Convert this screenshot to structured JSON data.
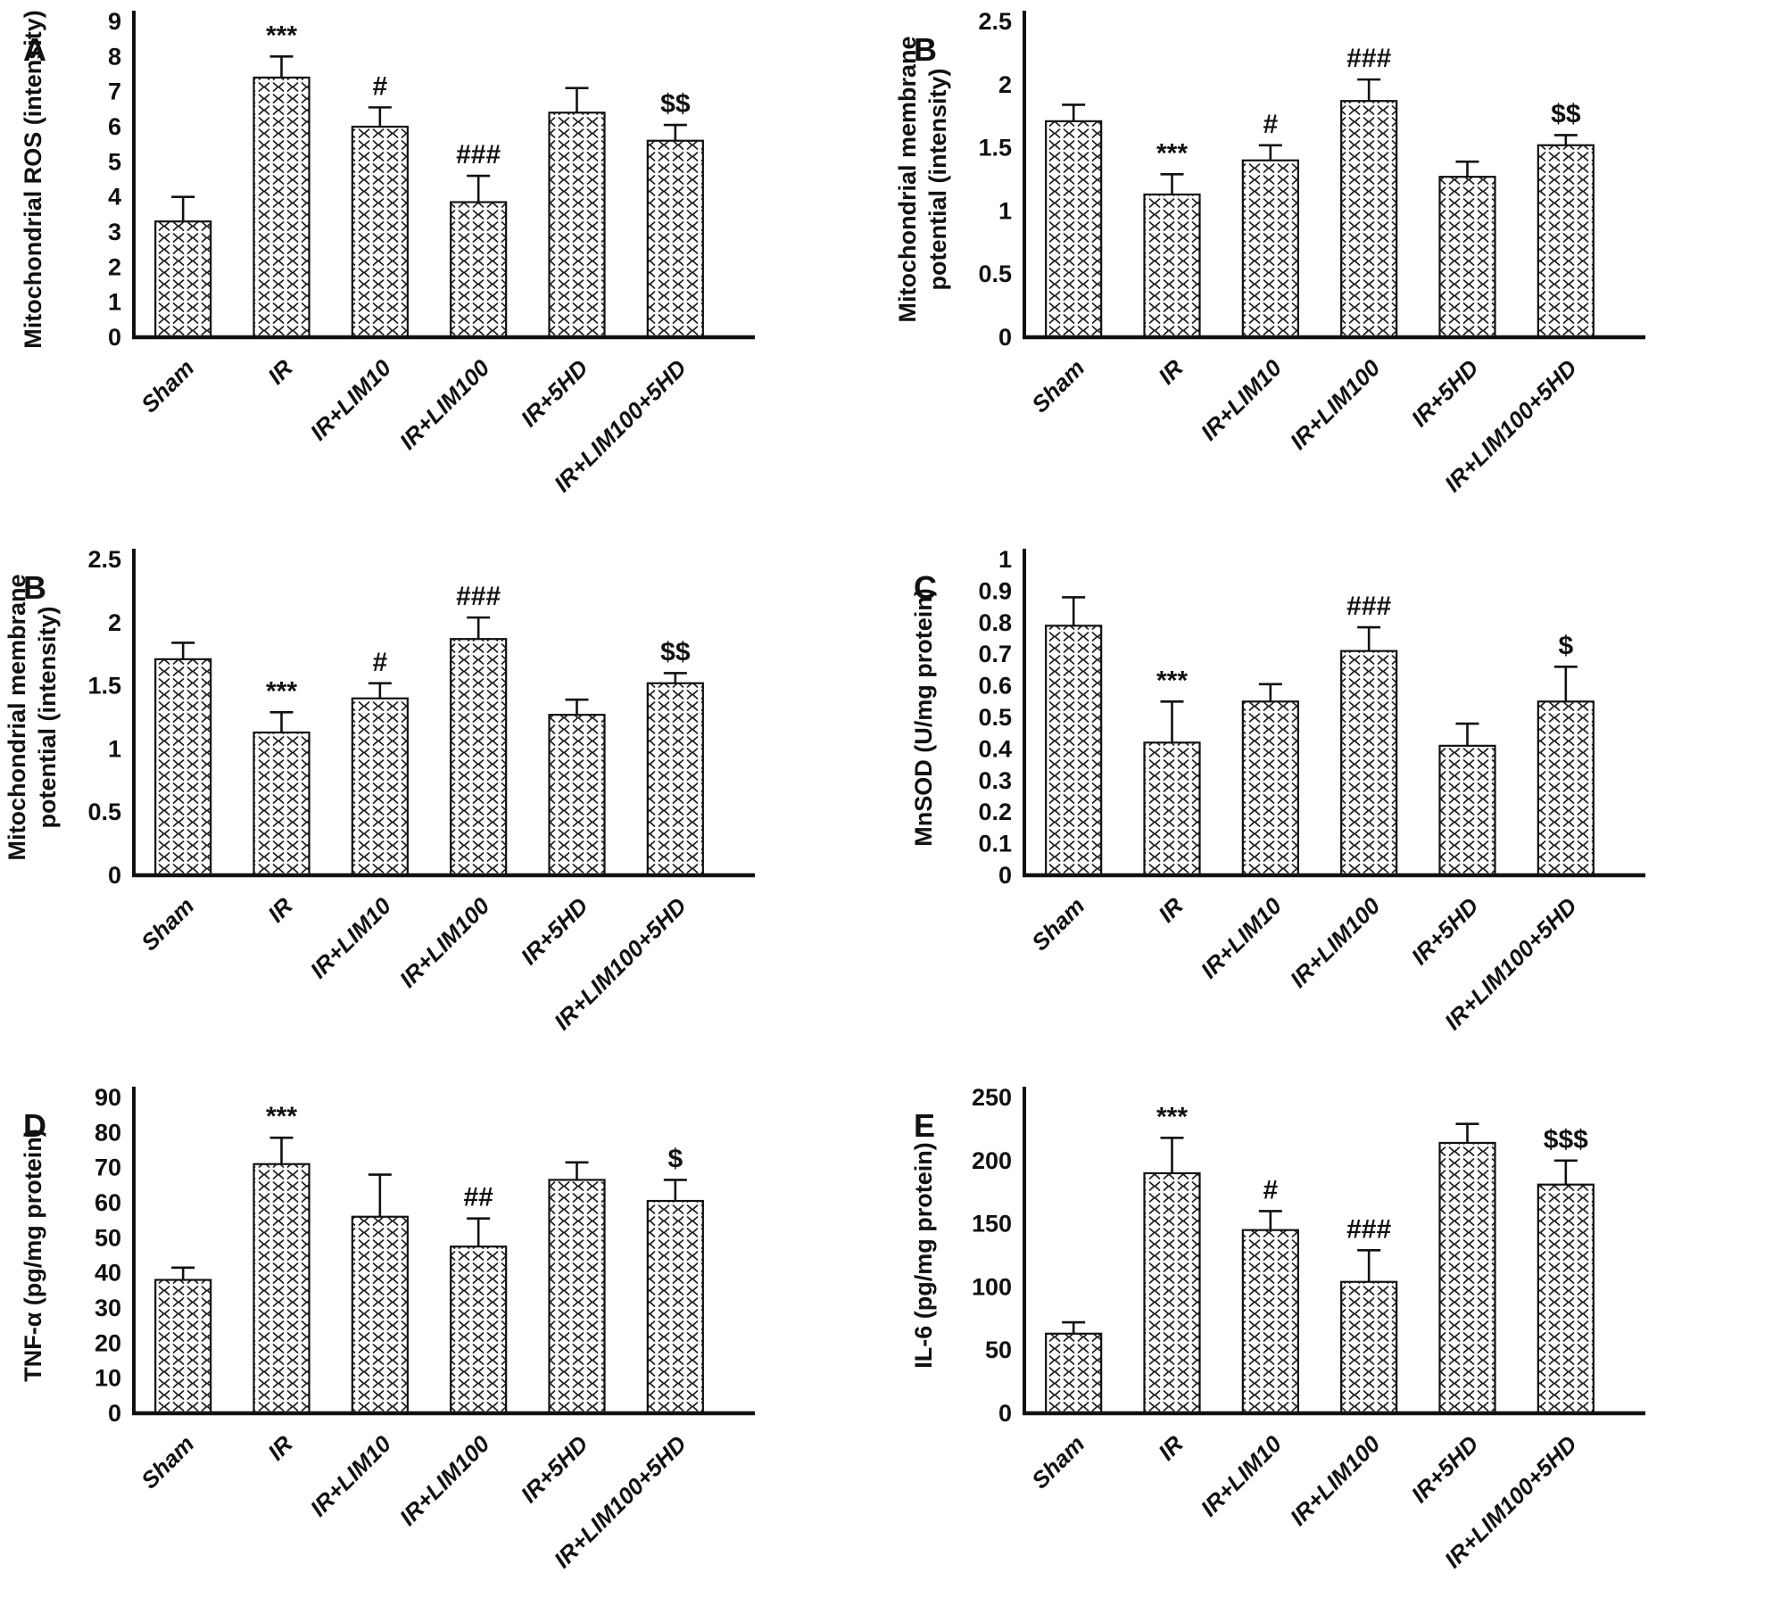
{
  "figure": {
    "background": "#ffffff",
    "ink_color": "#111111",
    "bar_fill": "#ffffff",
    "bar_pattern": "chevron-hatch",
    "panels_order": [
      "A",
      "B",
      "B",
      "C",
      "D",
      "E"
    ]
  },
  "chart_data": [
    {
      "type": "bar",
      "panel_letter": "A",
      "ylabel": "Mitochondrial ROS (intensity)",
      "ylabel_lines": [
        "Mitochondrial ROS (intensity)"
      ],
      "ylim": [
        0,
        9
      ],
      "ytick_labels": [
        "0",
        "1",
        "2",
        "3",
        "4",
        "5",
        "6",
        "7",
        "8",
        "9"
      ],
      "categories": [
        "Sham",
        "IR",
        "IR+LIM10",
        "IR+LIM100",
        "IR+5HD",
        "IR+LIM100+5HD"
      ],
      "values": [
        3.3,
        7.4,
        6.0,
        3.85,
        6.4,
        5.6
      ],
      "errors": [
        0.7,
        0.6,
        0.55,
        0.75,
        0.7,
        0.45
      ],
      "annotations": [
        "",
        "***",
        "#",
        "###",
        "",
        "$$"
      ],
      "legend": "none",
      "grid": false
    },
    {
      "type": "bar",
      "panel_letter": "B",
      "ylabel": "Mitochondrial membrane potential (intensity)",
      "ylabel_lines": [
        "Mitochondrial membrane",
        "potential (intensity)"
      ],
      "ylim": [
        0,
        2.5
      ],
      "ytick_labels": [
        "0",
        "0.5",
        "1",
        "1.5",
        "2",
        "2.5"
      ],
      "categories": [
        "Sham",
        "IR",
        "IR+LIM10",
        "IR+LIM100",
        "IR+5HD",
        "IR+LIM100+5HD"
      ],
      "values": [
        1.71,
        1.13,
        1.4,
        1.87,
        1.27,
        1.52
      ],
      "errors": [
        0.13,
        0.16,
        0.12,
        0.17,
        0.12,
        0.08
      ],
      "annotations": [
        "",
        "***",
        "#",
        "###",
        "",
        "$$"
      ],
      "legend": "none",
      "grid": false
    },
    {
      "type": "bar",
      "panel_letter": "B",
      "ylabel": "Mitochondrial membrane potential (intensity)",
      "ylabel_lines": [
        "Mitochondrial membrane",
        "potential (intensity)"
      ],
      "ylim": [
        0,
        2.5
      ],
      "ytick_labels": [
        "0",
        "0.5",
        "1",
        "1.5",
        "2",
        "2.5"
      ],
      "categories": [
        "Sham",
        "IR",
        "IR+LIM10",
        "IR+LIM100",
        "IR+5HD",
        "IR+LIM100+5HD"
      ],
      "values": [
        1.71,
        1.13,
        1.4,
        1.87,
        1.27,
        1.52
      ],
      "errors": [
        0.13,
        0.16,
        0.12,
        0.17,
        0.12,
        0.08
      ],
      "annotations": [
        "",
        "***",
        "#",
        "###",
        "",
        "$$"
      ],
      "legend": "none",
      "grid": false
    },
    {
      "type": "bar",
      "panel_letter": "C",
      "ylabel": "MnSOD  (U/mg protein)",
      "ylabel_lines": [
        "MnSOD  (U/mg protein)"
      ],
      "ylim": [
        0,
        1
      ],
      "ytick_labels": [
        "0",
        "0.1",
        "0.2",
        "0.3",
        "0.4",
        "0.5",
        "0.6",
        "0.7",
        "0.8",
        "0.9",
        "1"
      ],
      "categories": [
        "Sham",
        "IR",
        "IR+LIM10",
        "IR+LIM100",
        "IR+5HD",
        "IR+LIM100+5HD"
      ],
      "values": [
        0.79,
        0.42,
        0.55,
        0.71,
        0.41,
        0.55
      ],
      "errors": [
        0.09,
        0.13,
        0.055,
        0.075,
        0.07,
        0.11
      ],
      "annotations": [
        "",
        "***",
        "",
        "###",
        "",
        "$"
      ],
      "legend": "none",
      "grid": false
    },
    {
      "type": "bar",
      "panel_letter": "D",
      "ylabel": "TNF-α  (pg/mg protein)",
      "ylabel_lines": [
        "TNF-α  (pg/mg protein)"
      ],
      "ylim": [
        0,
        90
      ],
      "ytick_labels": [
        "0",
        "10",
        "20",
        "30",
        "40",
        "50",
        "60",
        "70",
        "80",
        "90"
      ],
      "categories": [
        "Sham",
        "IR",
        "IR+LIM10",
        "IR+LIM100",
        "IR+5HD",
        "IR+LIM100+5HD"
      ],
      "values": [
        38,
        71,
        56,
        47.5,
        66.5,
        60.5
      ],
      "errors": [
        3.5,
        7.5,
        12,
        8,
        5,
        6
      ],
      "annotations": [
        "",
        "***",
        "",
        "##",
        "",
        "$"
      ],
      "legend": "none",
      "grid": false
    },
    {
      "type": "bar",
      "panel_letter": "E",
      "ylabel": "IL-6 (pg/mg protein)",
      "ylabel_lines": [
        "IL-6 (pg/mg protein)"
      ],
      "ylim": [
        0,
        250
      ],
      "ytick_labels": [
        "0",
        "50",
        "100",
        "150",
        "200",
        "250"
      ],
      "categories": [
        "Sham",
        "IR",
        "IR+LIM10",
        "IR+LIM100",
        "IR+5HD",
        "IR+LIM100+5HD"
      ],
      "values": [
        63,
        190,
        145,
        104,
        214,
        181
      ],
      "errors": [
        9,
        28,
        15,
        25,
        15,
        19
      ],
      "annotations": [
        "",
        "***",
        "#",
        "###",
        "",
        "$$$"
      ],
      "legend": "none",
      "grid": false
    }
  ]
}
